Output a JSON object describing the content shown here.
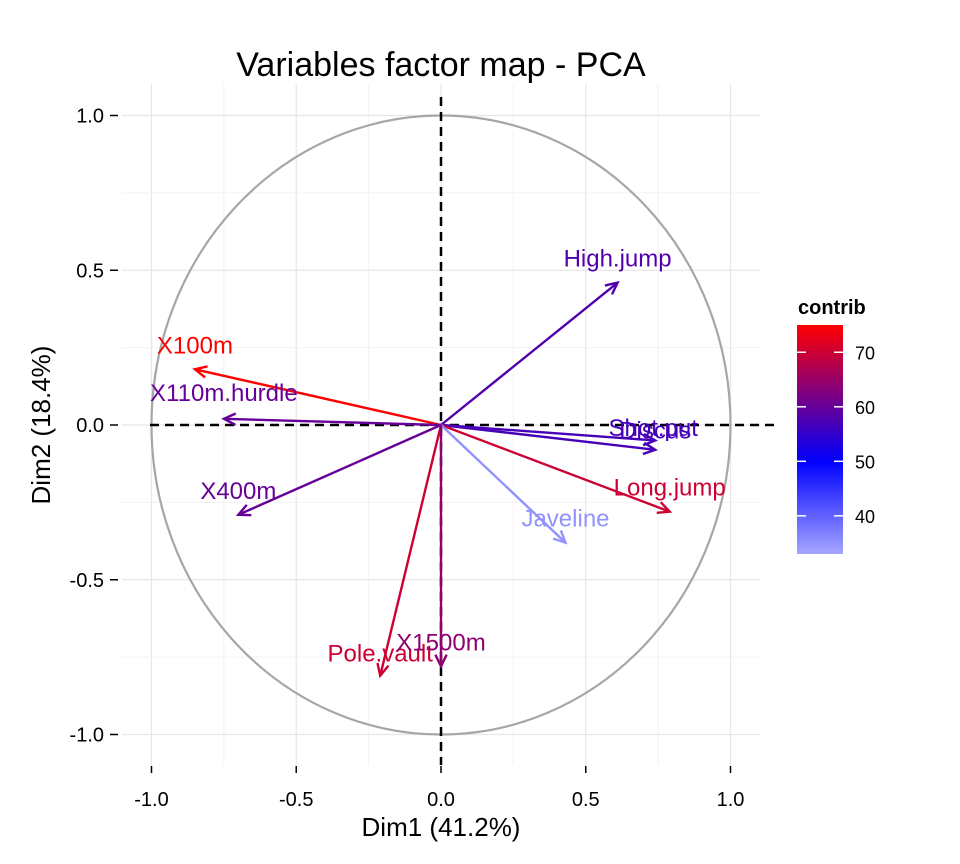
{
  "chart_data": {
    "type": "scatter",
    "title": "Variables factor map - PCA",
    "xlabel": "Dim1 (41.2%)",
    "ylabel": "Dim2 (18.4%)",
    "xlim": [
      -1.1,
      1.1
    ],
    "ylim": [
      -1.1,
      1.1
    ],
    "x_ticks": [
      -1.0,
      -0.5,
      0.0,
      0.5,
      1.0
    ],
    "y_ticks": [
      -1.0,
      -0.5,
      0.0,
      0.5,
      1.0
    ],
    "x_tick_labels": [
      "-1.0",
      "-0.5",
      "0.0",
      "0.5",
      "1.0"
    ],
    "y_tick_labels": [
      "-1.0",
      "-0.5",
      "0.0",
      "0.5",
      "1.0"
    ],
    "grid": true,
    "correlation_circle": true,
    "circle_color": "#a6a6a6",
    "variables": [
      {
        "name": "X100m",
        "x": -0.85,
        "y": 0.18,
        "contrib": 75
      },
      {
        "name": "X110m.hurdle",
        "x": -0.75,
        "y": 0.02,
        "contrib": 60
      },
      {
        "name": "X400m",
        "x": -0.7,
        "y": -0.29,
        "contrib": 60
      },
      {
        "name": "High.jump",
        "x": 0.61,
        "y": 0.46,
        "contrib": 58
      },
      {
        "name": "Discus",
        "x": 0.74,
        "y": -0.05,
        "contrib": 57
      },
      {
        "name": "Shot.put",
        "x": 0.74,
        "y": -0.08,
        "contrib": 57
      },
      {
        "name": "Long.jump",
        "x": 0.79,
        "y": -0.28,
        "contrib": 70
      },
      {
        "name": "Javeline",
        "x": 0.43,
        "y": -0.38,
        "contrib": 35
      },
      {
        "name": "Pole.vault",
        "x": -0.21,
        "y": -0.81,
        "contrib": 70
      },
      {
        "name": "X1500m",
        "x": 0.0,
        "y": -0.78,
        "contrib": 64
      }
    ],
    "legend": {
      "title": "contrib",
      "placement": "right",
      "tick_values": [
        70,
        60,
        50,
        40
      ],
      "tick_labels": [
        "70",
        "60",
        "50",
        "40"
      ],
      "min": 33,
      "max": 75,
      "color_low": "#a6a6ff",
      "color_mid": "#0000ff",
      "color_high": "#ff0000",
      "mid_value": 50
    }
  }
}
